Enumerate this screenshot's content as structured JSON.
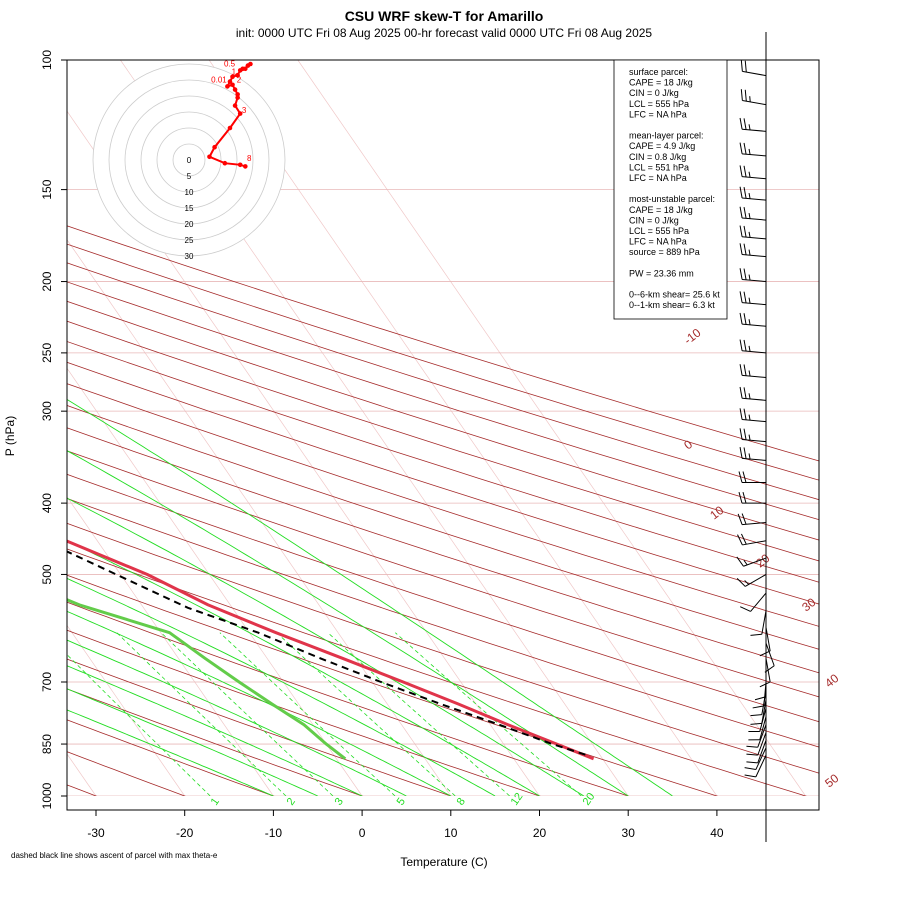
{
  "title": "CSU WRF skew-T for Amarillo",
  "subtitle": "init: 0000 UTC Fri 08 Aug 2025     00-hr forecast valid 0000 UTC Fri 08 Aug 2025",
  "footnote": "dashed black line shows ascent of parcel with max theta-e",
  "colors": {
    "temperature": "#e0344a",
    "dewpoint": "#63cc4a",
    "dry_adiabat": "#a52a2a",
    "moist_adiabat": "#22dd22",
    "mixing_ratio": "#22dd22",
    "isobar": "#e8b8b8",
    "isotherm": "#f0c8c8",
    "parcel": "#000000",
    "hodograph": "#ff0000"
  },
  "stats_box": {
    "lines": [
      "surface parcel:",
      "CAPE = 18 J/kg",
      "CIN = 0 J/kg",
      "LCL = 555 hPa",
      "LFC = NA hPa",
      "",
      "mean-layer parcel:",
      "CAPE = 4.9 J/kg",
      "CIN = 0.8 J/kg",
      "LCL = 551 hPa",
      "LFC = NA hPa",
      "",
      "most-unstable parcel:",
      "CAPE = 18 J/kg",
      "CIN = 0 J/kg",
      "LCL = 555 hPa",
      "LFC = NA hPa",
      "source = 889 hPa",
      "",
      "PW =  23.36 mm",
      "",
      "0--6-km shear= 25.6 kt",
      "0--1-km shear= 6.3 kt"
    ]
  },
  "chart_data": {
    "type": "skew-t",
    "xlabel": "Temperature (C)",
    "ylabel": "P (hPa)",
    "x_ticks": [
      -30,
      -20,
      -10,
      0,
      10,
      20,
      30,
      40
    ],
    "x_tick_labels": [
      "-30",
      "-20",
      "-10",
      "0",
      "10",
      "20",
      "30",
      "40"
    ],
    "p_ticks": [
      100,
      150,
      200,
      250,
      300,
      400,
      500,
      700,
      850,
      1000
    ],
    "p_tick_labels": [
      "100",
      "150",
      "200",
      "250",
      "300",
      "400",
      "500",
      "700",
      "850",
      "1000"
    ],
    "x_range": [
      -33,
      48
    ],
    "p_range": [
      100,
      1000
    ],
    "temperature": [
      {
        "p": 110,
        "t": -58.5
      },
      {
        "p": 120,
        "t": -62
      },
      {
        "p": 130,
        "t": -65
      },
      {
        "p": 140,
        "t": -67
      },
      {
        "p": 150,
        "t": -68
      },
      {
        "p": 165,
        "t": -67
      },
      {
        "p": 180,
        "t": -64.5
      },
      {
        "p": 200,
        "t": -60
      },
      {
        "p": 230,
        "t": -53
      },
      {
        "p": 250,
        "t": -48.5
      },
      {
        "p": 300,
        "t": -38
      },
      {
        "p": 350,
        "t": -29
      },
      {
        "p": 400,
        "t": -21
      },
      {
        "p": 450,
        "t": -13.5
      },
      {
        "p": 500,
        "t": -7
      },
      {
        "p": 550,
        "t": -2.5
      },
      {
        "p": 600,
        "t": 3
      },
      {
        "p": 650,
        "t": 8.5
      },
      {
        "p": 700,
        "t": 13.5
      },
      {
        "p": 750,
        "t": 18
      },
      {
        "p": 800,
        "t": 22
      },
      {
        "p": 850,
        "t": 26
      },
      {
        "p": 890,
        "t": 29
      }
    ],
    "dewpoint": [
      {
        "p": 110,
        "t": -88
      },
      {
        "p": 150,
        "t": -92
      },
      {
        "p": 180,
        "t": -88
      },
      {
        "p": 200,
        "t": -83
      },
      {
        "p": 250,
        "t": -76
      },
      {
        "p": 300,
        "t": -67
      },
      {
        "p": 350,
        "t": -54
      },
      {
        "p": 380,
        "t": -52
      },
      {
        "p": 400,
        "t": -49
      },
      {
        "p": 450,
        "t": -37
      },
      {
        "p": 500,
        "t": -23
      },
      {
        "p": 550,
        "t": -17
      },
      {
        "p": 600,
        "t": -9
      },
      {
        "p": 650,
        "t": -7
      },
      {
        "p": 700,
        "t": -5
      },
      {
        "p": 750,
        "t": -3
      },
      {
        "p": 800,
        "t": -1
      },
      {
        "p": 850,
        "t": 0
      },
      {
        "p": 890,
        "t": 1
      }
    ],
    "parcel_ascent": [
      {
        "p": 170,
        "t": -71
      },
      {
        "p": 200,
        "t": -61.5
      },
      {
        "p": 250,
        "t": -50
      },
      {
        "p": 300,
        "t": -40
      },
      {
        "p": 350,
        "t": -31
      },
      {
        "p": 400,
        "t": -23
      },
      {
        "p": 450,
        "t": -16
      },
      {
        "p": 500,
        "t": -10.5
      },
      {
        "p": 555,
        "t": -5
      },
      {
        "p": 600,
        "t": 1
      },
      {
        "p": 650,
        "t": 6
      },
      {
        "p": 700,
        "t": 11
      },
      {
        "p": 750,
        "t": 16
      },
      {
        "p": 800,
        "t": 21
      },
      {
        "p": 850,
        "t": 25.5
      },
      {
        "p": 880,
        "t": 28.5
      }
    ],
    "wind_barbs": [
      {
        "p": 105,
        "dir": 280,
        "kt": 20
      },
      {
        "p": 115,
        "dir": 280,
        "kt": 25
      },
      {
        "p": 125,
        "dir": 275,
        "kt": 25
      },
      {
        "p": 135,
        "dir": 275,
        "kt": 25
      },
      {
        "p": 145,
        "dir": 275,
        "kt": 25
      },
      {
        "p": 155,
        "dir": 275,
        "kt": 25
      },
      {
        "p": 165,
        "dir": 275,
        "kt": 25
      },
      {
        "p": 175,
        "dir": 275,
        "kt": 25
      },
      {
        "p": 185,
        "dir": 275,
        "kt": 25
      },
      {
        "p": 200,
        "dir": 275,
        "kt": 25
      },
      {
        "p": 215,
        "dir": 275,
        "kt": 25
      },
      {
        "p": 230,
        "dir": 275,
        "kt": 25
      },
      {
        "p": 250,
        "dir": 275,
        "kt": 25
      },
      {
        "p": 270,
        "dir": 275,
        "kt": 25
      },
      {
        "p": 290,
        "dir": 275,
        "kt": 25
      },
      {
        "p": 310,
        "dir": 275,
        "kt": 25
      },
      {
        "p": 330,
        "dir": 275,
        "kt": 25
      },
      {
        "p": 350,
        "dir": 275,
        "kt": 25
      },
      {
        "p": 375,
        "dir": 270,
        "kt": 20
      },
      {
        "p": 400,
        "dir": 270,
        "kt": 20
      },
      {
        "p": 425,
        "dir": 265,
        "kt": 20
      },
      {
        "p": 450,
        "dir": 260,
        "kt": 20
      },
      {
        "p": 475,
        "dir": 250,
        "kt": 15
      },
      {
        "p": 500,
        "dir": 240,
        "kt": 15
      },
      {
        "p": 530,
        "dir": 220,
        "kt": 10
      },
      {
        "p": 560,
        "dir": 190,
        "kt": 10
      },
      {
        "p": 590,
        "dir": 170,
        "kt": 10
      },
      {
        "p": 620,
        "dir": 160,
        "kt": 10
      },
      {
        "p": 650,
        "dir": 170,
        "kt": 10
      },
      {
        "p": 680,
        "dir": 180,
        "kt": 10
      },
      {
        "p": 700,
        "dir": 185,
        "kt": 10
      },
      {
        "p": 720,
        "dir": 190,
        "kt": 10
      },
      {
        "p": 740,
        "dir": 190,
        "kt": 10
      },
      {
        "p": 760,
        "dir": 195,
        "kt": 10
      },
      {
        "p": 780,
        "dir": 195,
        "kt": 10
      },
      {
        "p": 800,
        "dir": 200,
        "kt": 10
      },
      {
        "p": 820,
        "dir": 200,
        "kt": 10
      },
      {
        "p": 840,
        "dir": 200,
        "kt": 10
      },
      {
        "p": 860,
        "dir": 205,
        "kt": 10
      },
      {
        "p": 880,
        "dir": 205,
        "kt": 10
      }
    ],
    "dry_adiabat_labels": [
      "-10",
      "0",
      "10",
      "20",
      "30",
      "40",
      "50"
    ],
    "mixing_ratio_labels": [
      "1",
      "2",
      "3",
      "5",
      "8",
      "12",
      "20"
    ],
    "mixing_ratio_values": [
      1,
      2,
      3,
      5,
      8,
      12,
      20
    ],
    "hodograph": {
      "ring_labels": [
        "0",
        "5",
        "10",
        "15",
        "20",
        "25",
        "30"
      ],
      "ring_values": [
        0,
        5,
        10,
        15,
        20,
        25,
        30
      ],
      "points": [
        {
          "u": 11,
          "v": -2
        },
        {
          "u": 10,
          "v": -1.5
        },
        {
          "u": 7,
          "v": -1
        },
        {
          "u": 4,
          "v": 1
        },
        {
          "u": 5,
          "v": 4
        },
        {
          "u": 8,
          "v": 10
        },
        {
          "u": 10,
          "v": 14.5
        },
        {
          "u": 9,
          "v": 17
        },
        {
          "u": 9.5,
          "v": 19.5
        },
        {
          "u": 9.5,
          "v": 20.5
        },
        {
          "u": 9,
          "v": 22
        },
        {
          "u": 8.5,
          "v": 23.5
        },
        {
          "u": 7.5,
          "v": 23
        },
        {
          "u": 8,
          "v": 24.5
        },
        {
          "u": 8.5,
          "v": 26
        },
        {
          "u": 9.5,
          "v": 26.5
        },
        {
          "u": 10,
          "v": 28
        },
        {
          "u": 10.5,
          "v": 28.5
        },
        {
          "u": 11,
          "v": 28.5
        },
        {
          "u": 11.5,
          "v": 29.5
        },
        {
          "u": 12,
          "v": 30
        }
      ],
      "level_labels": [
        {
          "text": "0.5",
          "u": 8,
          "v": 28
        },
        {
          "text": "0.01",
          "u": 5.5,
          "v": 23
        },
        {
          "text": "1",
          "u": 9.5,
          "v": 25.5
        },
        {
          "text": "2",
          "u": 10.5,
          "v": 23
        },
        {
          "text": "3",
          "u": 11.5,
          "v": 13.5
        },
        {
          "text": "8",
          "u": 12.5,
          "v": -1.5
        }
      ]
    }
  }
}
